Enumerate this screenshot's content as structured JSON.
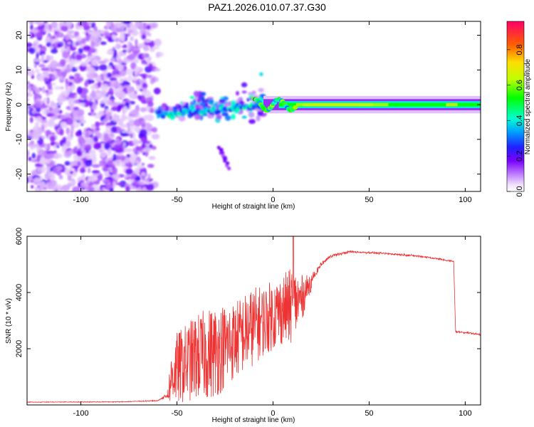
{
  "title": "PAZ1.2026.010.07.37.G30",
  "chart_data": [
    {
      "type": "heatmap",
      "xlabel": "Height of straight line (km)",
      "ylabel": "Frequency (Hz)",
      "xlim": [
        -128,
        108
      ],
      "ylim": [
        -25,
        24
      ],
      "xticks": [
        -100,
        -50,
        0,
        50,
        100
      ],
      "yticks": [
        -20,
        -10,
        0,
        10,
        20
      ],
      "colorbar": {
        "label": "Normalized spectral amplitude",
        "range": [
          0,
          0.96
        ],
        "ticks": [
          0.0,
          0.2,
          0.4,
          0.6,
          0.8
        ]
      },
      "features": {
        "noise_region": [
          -128,
          -60
        ],
        "converging_region": [
          -60,
          -5
        ],
        "stable_tone_region": [
          -5,
          108
        ],
        "stable_tone_frequency_hz": 0,
        "branch_down_path": [
          [
            -30,
            -10
          ],
          [
            -22,
            -19
          ]
        ]
      }
    },
    {
      "type": "line",
      "xlabel": "Height of straight line (km)",
      "ylabel": "SNR (10 * v/v)",
      "xlim": [
        -128,
        108
      ],
      "ylim": [
        0,
        6000
      ],
      "xticks": [
        -100,
        -50,
        0,
        50,
        100
      ],
      "yticks": [
        2000,
        4000,
        6000
      ],
      "color": "#ee3333",
      "series": [
        {
          "name": "SNR",
          "envelope_x": [
            -128,
            -80,
            -60,
            -55,
            -52,
            -45,
            -40,
            -30,
            -25,
            -20,
            -10,
            -5,
            0,
            5,
            10,
            15,
            18,
            25,
            30,
            40,
            50,
            60,
            70,
            80,
            90,
            94,
            95,
            100,
            108
          ],
          "envelope_mean": [
            100,
            110,
            150,
            350,
            1200,
            1500,
            1700,
            1900,
            2100,
            2300,
            2800,
            3000,
            3200,
            3400,
            3500,
            3800,
            4200,
            5000,
            5300,
            5450,
            5420,
            5380,
            5330,
            5260,
            5150,
            5100,
            2600,
            2580,
            2500
          ],
          "envelope_spread": [
            20,
            25,
            30,
            150,
            900,
            1000,
            1100,
            1200,
            1100,
            1000,
            1000,
            900,
            900,
            900,
            1000,
            600,
            300,
            150,
            100,
            80,
            60,
            60,
            60,
            60,
            60,
            60,
            60,
            60,
            60
          ]
        }
      ]
    }
  ]
}
